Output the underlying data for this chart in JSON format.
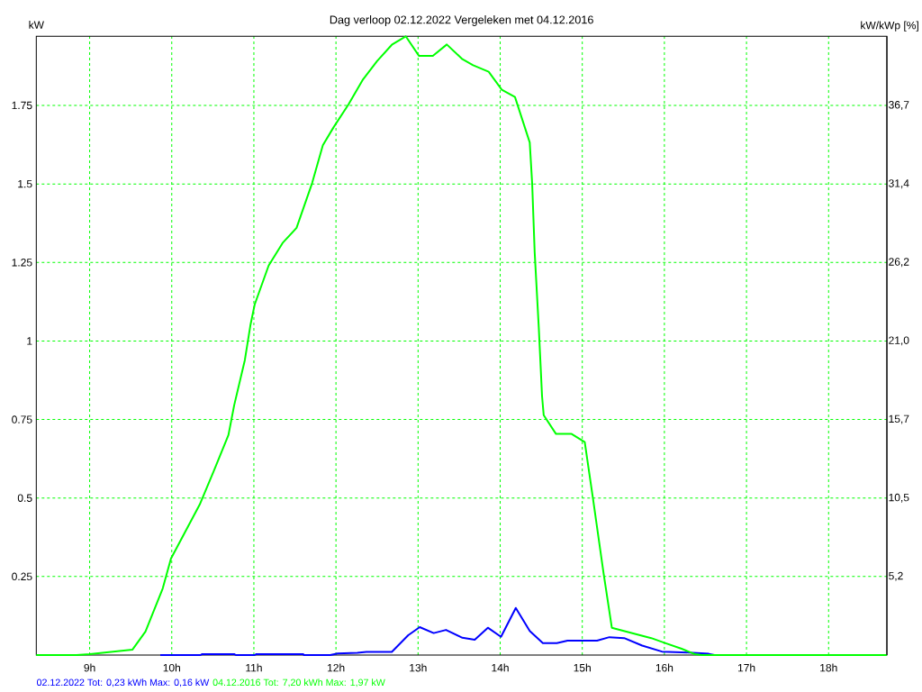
{
  "chart_data": {
    "type": "line",
    "title": "Dag verloop 02.12.2022 Vergeleken met 04.12.2016",
    "ylabel": "kW",
    "y2label": "kW/kWp [%]",
    "xlim": [
      8.35,
      18.71
    ],
    "xticks": [
      {
        "value": 9,
        "label": "9h"
      },
      {
        "value": 10,
        "label": "10h"
      },
      {
        "value": 11,
        "label": "11h"
      },
      {
        "value": 12,
        "label": "12h"
      },
      {
        "value": 13,
        "label": "13h"
      },
      {
        "value": 14,
        "label": "14h"
      },
      {
        "value": 15,
        "label": "15h"
      },
      {
        "value": 16,
        "label": "16h"
      },
      {
        "value": 17,
        "label": "17h"
      },
      {
        "value": 18,
        "label": "18h"
      }
    ],
    "ylim": [
      0,
      1.97
    ],
    "yticks": [
      0.25,
      0.5,
      0.75,
      1,
      1.25,
      1.5,
      1.75
    ],
    "y2lim": [
      0,
      41.27
    ],
    "y2ticks": [
      {
        "value": 5.24,
        "label": "5,2"
      },
      {
        "value": 10.47,
        "label": "10,5"
      },
      {
        "value": 15.71,
        "label": "15,7"
      },
      {
        "value": 20.95,
        "label": "21,0"
      },
      {
        "value": 26.19,
        "label": "26,2"
      },
      {
        "value": 31.42,
        "label": "31,4"
      },
      {
        "value": 36.66,
        "label": "36,7"
      }
    ],
    "grid": true,
    "legend": "bottom left",
    "line_style": "solid",
    "series": [
      {
        "name": "02.12.2022 Tot: 0,23 kWh Max: 0,16 kW",
        "color": "#0000ff",
        "x": [
          9.86,
          10.35,
          10.37,
          10.76,
          10.78,
          11.01,
          11.03,
          11.6,
          11.61,
          11.93,
          12.02,
          12.26,
          12.37,
          12.68,
          12.88,
          13.02,
          13.19,
          13.34,
          13.54,
          13.69,
          13.85,
          14.01,
          14.19,
          14.36,
          14.52,
          14.69,
          14.82,
          15.18,
          15.33,
          15.51,
          15.73,
          15.97,
          16.3,
          16.54,
          16.61
        ],
        "values": [
          0,
          0,
          0.003,
          0.003,
          0,
          0,
          0.003,
          0.003,
          0,
          0,
          0.005,
          0.007,
          0.01,
          0.01,
          0.063,
          0.089,
          0.07,
          0.08,
          0.055,
          0.049,
          0.087,
          0.058,
          0.15,
          0.077,
          0.038,
          0.038,
          0.046,
          0.046,
          0.057,
          0.054,
          0.03,
          0.011,
          0.008,
          0.004,
          0
        ]
      },
      {
        "name": "04.12.2016 Tot: 7,20 kWh Max: 1,97 kW",
        "color": "#00ff00",
        "x": [
          8.35,
          8.84,
          9.0,
          9.52,
          9.68,
          9.89,
          9.99,
          10.34,
          10.51,
          10.69,
          10.76,
          10.89,
          10.96,
          11.01,
          11.18,
          11.35,
          11.52,
          11.71,
          11.84,
          11.97,
          12.15,
          12.33,
          12.5,
          12.68,
          12.85,
          13.01,
          13.18,
          13.35,
          13.54,
          13.67,
          13.86,
          14.02,
          14.18,
          14.36,
          14.39,
          14.42,
          14.47,
          14.51,
          14.53,
          14.68,
          14.87,
          15.03,
          15.13,
          15.26,
          15.36,
          15.84,
          16.0,
          16.21,
          16.37,
          16.46,
          18.71
        ],
        "values": [
          0,
          0,
          0.003,
          0.017,
          0.075,
          0.212,
          0.307,
          0.479,
          0.585,
          0.7,
          0.795,
          0.939,
          1.053,
          1.116,
          1.24,
          1.312,
          1.36,
          1.503,
          1.623,
          1.68,
          1.752,
          1.833,
          1.891,
          1.943,
          1.97,
          1.908,
          1.908,
          1.944,
          1.897,
          1.878,
          1.857,
          1.8,
          1.777,
          1.632,
          1.499,
          1.283,
          1.044,
          0.824,
          0.764,
          0.704,
          0.704,
          0.678,
          0.499,
          0.259,
          0.087,
          0.054,
          0.039,
          0.02,
          0.003,
          0,
          0
        ]
      }
    ]
  }
}
